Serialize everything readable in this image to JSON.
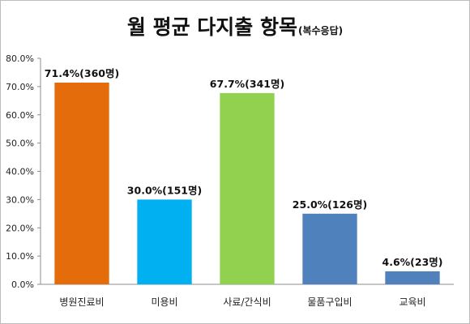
{
  "chart_data": {
    "type": "bar",
    "title": "월 평균 다지출 항목",
    "subtitle": "(복수응답)",
    "categories": [
      "병원진료비",
      "미용비",
      "사료/간식비",
      "물품구입비",
      "교육비"
    ],
    "values": [
      71.4,
      30.0,
      67.7,
      25.0,
      4.6
    ],
    "data_labels": [
      "71.4%(360명)",
      "30.0%(151명)",
      "67.7%(341명)",
      "25.0%(126명)",
      "4.6%(23명)"
    ],
    "bar_colors": [
      "#e46c0a",
      "#00b0f0",
      "#92d050",
      "#4f81bd",
      "#4f81bd"
    ],
    "ylim": [
      0,
      80
    ],
    "yticks": [
      "0.0%",
      "10.0%",
      "20.0%",
      "30.0%",
      "40.0%",
      "50.0%",
      "60.0%",
      "70.0%",
      "80.0%"
    ],
    "grid": false,
    "legend": "none",
    "xlabel": "",
    "ylabel": ""
  }
}
